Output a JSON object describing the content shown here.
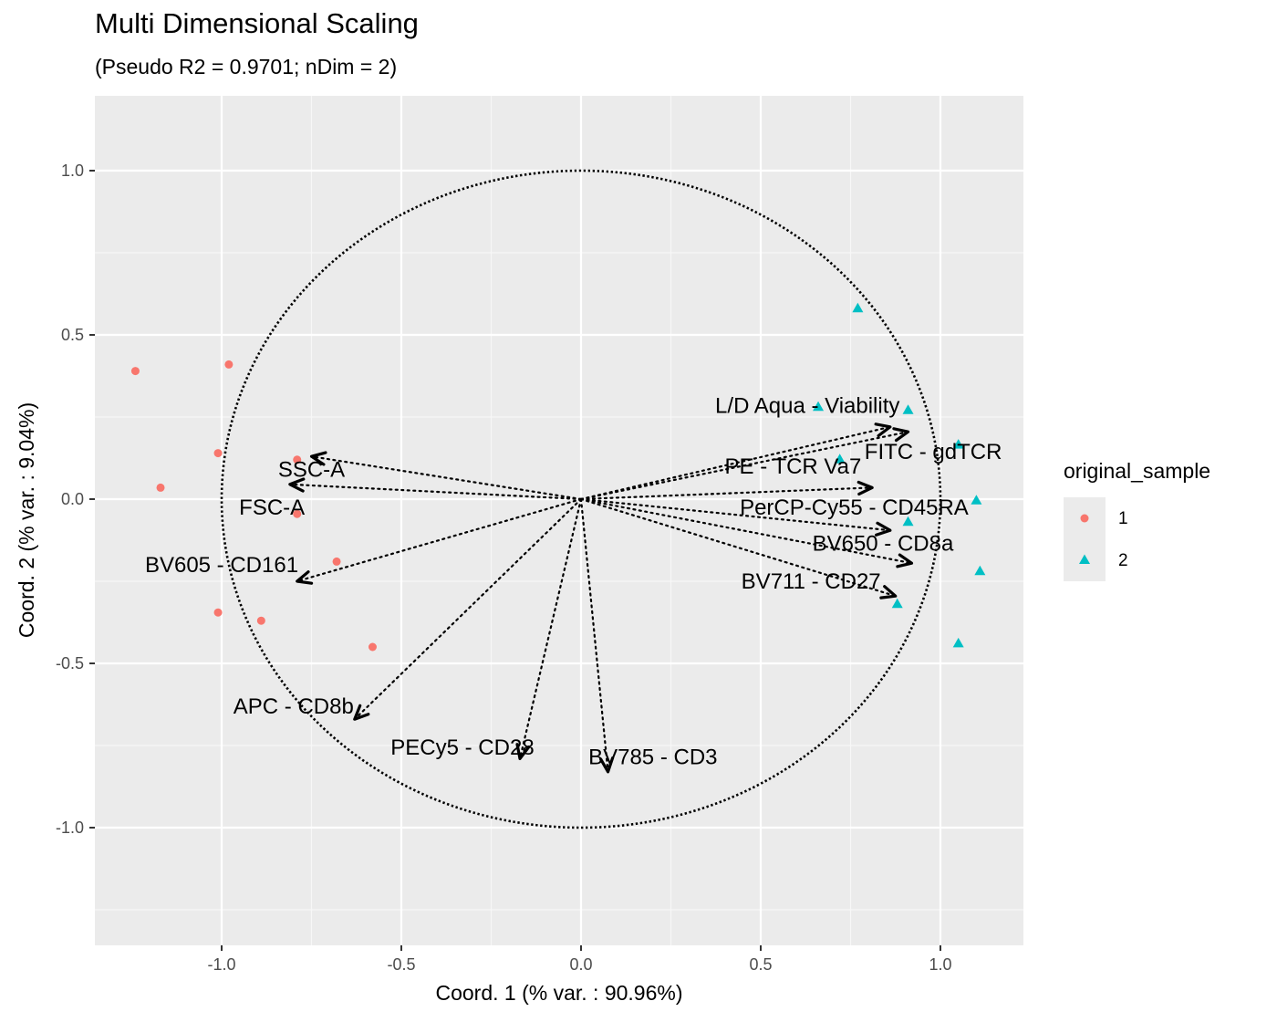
{
  "chart_data": {
    "type": "scatter",
    "title": "Multi Dimensional Scaling",
    "subtitle": "(Pseudo R2 = 0.9701; nDim = 2)",
    "xlabel": "Coord. 1 (% var. : 90.96%)",
    "ylabel": "Coord. 2 (% var. : 9.04%)",
    "xlim": [
      -1.34,
      1.22
    ],
    "ylim": [
      -1.36,
      1.22
    ],
    "xticks": [
      -1.0,
      -0.5,
      0.0,
      0.5,
      1.0
    ],
    "xtick_labels": [
      "-1.0",
      "-0.5",
      "0.0",
      "0.5",
      "1.0"
    ],
    "yticks": [
      1.0,
      0.5,
      0.0,
      -0.5,
      -1.0
    ],
    "ytick_labels": [
      "1.0",
      "0.5",
      "0.0",
      "-0.5",
      "-1.0"
    ],
    "grid": true,
    "unit_circle": true,
    "legend": {
      "title": "original_sample",
      "position": "right",
      "entries": [
        {
          "label": "1",
          "shape": "circle",
          "color": "#F8766D"
        },
        {
          "label": "2",
          "shape": "triangle",
          "color": "#00BFC4"
        }
      ]
    },
    "series": [
      {
        "name": "1",
        "color": "#F8766D",
        "shape": "circle",
        "points": [
          {
            "x": -1.24,
            "y": 0.39
          },
          {
            "x": -0.98,
            "y": 0.41
          },
          {
            "x": -1.01,
            "y": 0.14
          },
          {
            "x": -1.17,
            "y": 0.035
          },
          {
            "x": -0.79,
            "y": 0.12
          },
          {
            "x": -0.79,
            "y": -0.045
          },
          {
            "x": -0.68,
            "y": -0.19
          },
          {
            "x": -1.01,
            "y": -0.345
          },
          {
            "x": -0.89,
            "y": -0.37
          },
          {
            "x": -0.58,
            "y": -0.45
          }
        ]
      },
      {
        "name": "2",
        "color": "#00BFC4",
        "shape": "triangle",
        "points": [
          {
            "x": 0.77,
            "y": 0.58
          },
          {
            "x": 0.66,
            "y": 0.28
          },
          {
            "x": 0.91,
            "y": 0.27
          },
          {
            "x": 0.72,
            "y": 0.12
          },
          {
            "x": 1.05,
            "y": 0.165
          },
          {
            "x": 1.1,
            "y": -0.005
          },
          {
            "x": 0.91,
            "y": -0.07
          },
          {
            "x": 1.11,
            "y": -0.22
          },
          {
            "x": 0.88,
            "y": -0.32
          },
          {
            "x": 1.05,
            "y": -0.44
          }
        ]
      }
    ],
    "arrows": [
      {
        "label": "SSC-A",
        "x": -0.75,
        "y": 0.13,
        "label_x": -0.75,
        "label_y": 0.09
      },
      {
        "label": "FSC-A",
        "x": -0.81,
        "y": 0.045,
        "label_x": -0.86,
        "label_y": -0.025
      },
      {
        "label": "BV605 - CD161",
        "x": -0.79,
        "y": -0.25,
        "label_x": -1.0,
        "label_y": -0.2
      },
      {
        "label": "APC - CD8b",
        "x": -0.63,
        "y": -0.67,
        "label_x": -0.8,
        "label_y": -0.63
      },
      {
        "label": "PECy5 - CD28",
        "x": -0.17,
        "y": -0.79,
        "label_x": -0.33,
        "label_y": -0.755
      },
      {
        "label": "BV785 - CD3",
        "x": 0.075,
        "y": -0.83,
        "label_x": 0.2,
        "label_y": -0.785
      },
      {
        "label": "L/D Aqua - Viability",
        "x": 0.86,
        "y": 0.22,
        "label_x": 0.63,
        "label_y": 0.285
      },
      {
        "label": "FITC - gdTCR",
        "x": 0.91,
        "y": 0.205,
        "label_x": 0.98,
        "label_y": 0.145
      },
      {
        "label": "PE - TCR Va7",
        "x": 0.81,
        "y": 0.035,
        "label_x": 0.59,
        "label_y": 0.1
      },
      {
        "label": "PerCP-Cy55 - CD45RA",
        "x": 0.86,
        "y": -0.095,
        "label_x": 0.76,
        "label_y": -0.025
      },
      {
        "label": "BV650 - CD8a",
        "x": 0.92,
        "y": -0.195,
        "label_x": 0.84,
        "label_y": -0.135
      },
      {
        "label": "BV711 - CD27",
        "x": 0.875,
        "y": -0.295,
        "label_x": 0.64,
        "label_y": -0.25
      }
    ]
  }
}
